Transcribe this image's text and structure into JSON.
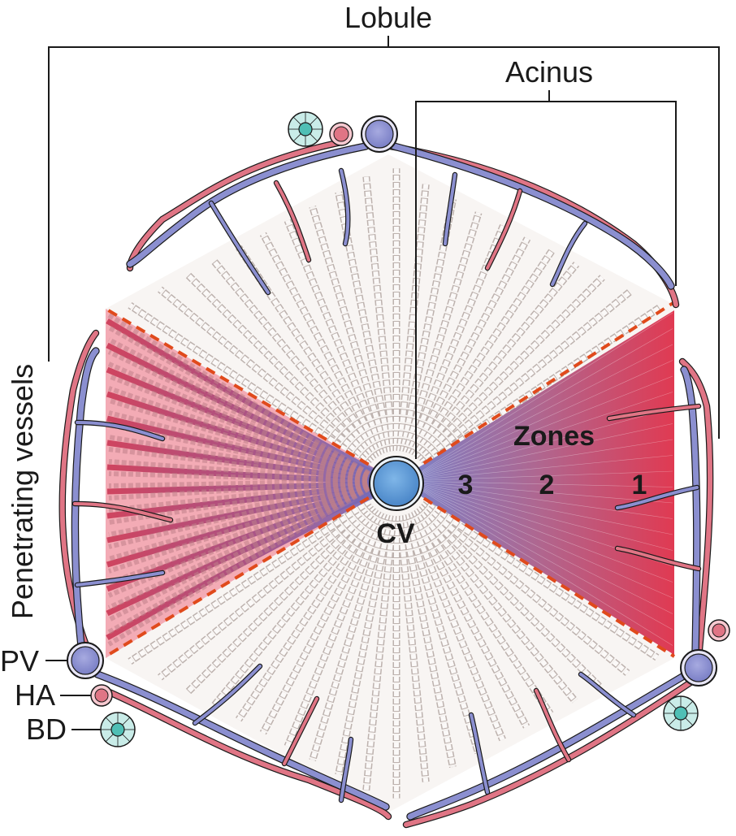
{
  "labels": {
    "lobule": "Lobule",
    "acinus": "Acinus",
    "penetrating_vessels": "Penetrating vessels",
    "cv": "CV",
    "zones_title": "Zones",
    "zone_3": "3",
    "zone_2": "2",
    "zone_1": "1",
    "pv": "PV",
    "ha": "HA",
    "bd": "BD"
  },
  "colors": {
    "portal_vein": "#8b8fd0",
    "hepatic_artery": "#e07585",
    "bile_duct": "#5ec8c0",
    "central_vein": "#5c9bd6",
    "zone_gradient_center": "#7b82c8",
    "zone_gradient_edge": "#e03a52",
    "acinus_boundary": "#e04a1c",
    "hepatocyte": "#f4f0ee",
    "hepatocyte_left": "#f2a4b0"
  }
}
